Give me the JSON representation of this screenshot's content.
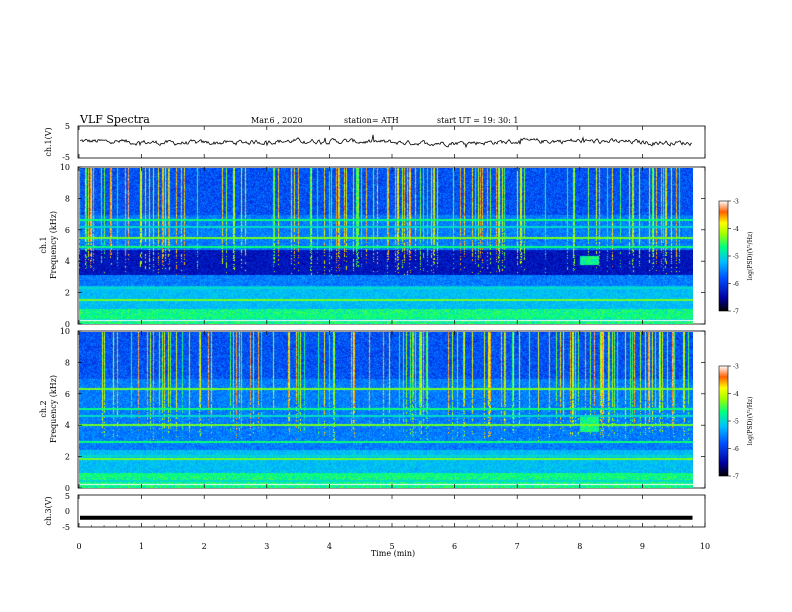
{
  "header": {
    "title": "VLF  Spectra",
    "date": "Mar.6  , 2020",
    "station": "station= ATH",
    "start": "start  UT  =    19: 30: 1"
  },
  "chart_data": [
    {
      "type": "line",
      "panel": "ch1-waveform",
      "ylabel": "ch.1(V)",
      "xlim": [
        0,
        10
      ],
      "ylim": [
        -5,
        5
      ],
      "y_ticks": [
        "5",
        "-5"
      ],
      "series": [
        {
          "baseline_v": 0.0,
          "noise_amplitude_v": 1.2
        }
      ],
      "line_color": "#000000"
    },
    {
      "type": "heatmap",
      "panel": "ch1-spectrogram",
      "ylabel": "ch.1\nFrequency  (kHz)",
      "xlim": [
        0,
        9.8
      ],
      "ylim": [
        0,
        10
      ],
      "y_ticks": [
        "0",
        "2",
        "4",
        "6",
        "8",
        "10"
      ],
      "colorbar": {
        "label": "log(PSD)(V²/Hz)",
        "ticks": [
          "-3",
          "-4",
          "-5",
          "-6",
          "-7"
        ],
        "range": [
          -7,
          -3
        ]
      },
      "dark_band_khz": [
        3.2,
        4.8
      ],
      "bright_lines_khz": [
        0.3,
        0.6,
        1.6,
        2.4,
        5.0,
        5.6,
        6.3,
        6.7
      ],
      "emission_patch": {
        "t_min": [
          8.0,
          8.3
        ],
        "f_khz": [
          3.8,
          4.4
        ]
      }
    },
    {
      "type": "heatmap",
      "panel": "ch2-spectrogram",
      "ylabel": "ch.2\nFrequency  (kHz)",
      "xlim": [
        0,
        9.8
      ],
      "ylim": [
        0,
        10
      ],
      "y_ticks": [
        "0",
        "2",
        "4",
        "6",
        "8",
        "10"
      ],
      "colorbar": {
        "label": "log(PSD)(V²/Hz)",
        "ticks": [
          "-3",
          "-4",
          "-5",
          "-6",
          "-7"
        ],
        "range": [
          -7,
          -3
        ]
      },
      "bright_lines_khz": [
        0.5,
        0.9,
        1.9,
        2.1,
        3.0,
        4.1,
        4.7,
        5.1,
        6.4
      ],
      "emission_patch": {
        "t_min": [
          8.0,
          8.3
        ],
        "f_khz": [
          3.6,
          4.6
        ]
      }
    },
    {
      "type": "line",
      "panel": "ch3-waveform",
      "ylabel": "ch.3(V)",
      "xlim": [
        0,
        10
      ],
      "ylim": [
        -5,
        5
      ],
      "y_ticks": [
        "5",
        "0",
        "-5"
      ],
      "series": [
        {
          "constant_v": -2.1
        }
      ],
      "line_color": "#000000"
    }
  ],
  "x_axis": {
    "label": "Time  (min)",
    "ticks": [
      "0",
      "1",
      "2",
      "3",
      "4",
      "5",
      "6",
      "7",
      "8",
      "9",
      "10"
    ]
  },
  "colors": {
    "background": "#ffffff",
    "spectrogram_low": "#000060",
    "spectrogram_high": "#c00000"
  }
}
